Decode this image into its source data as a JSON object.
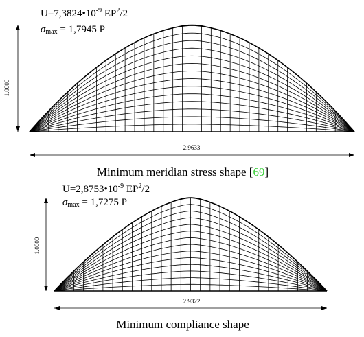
{
  "figure": {
    "panels": [
      {
        "id": "top",
        "energy": {
          "prefix": "U=7,3824•10",
          "exponent": "-9",
          "middle": " EP",
          "power": "2",
          "suffix": "/2"
        },
        "sigma": {
          "symbol": "σ",
          "subscript": "max",
          "value": " = 1,7945 P"
        },
        "height_label": "1.0000",
        "width_label": "2.9633",
        "caption": {
          "text": "Minimum meridian stress shape [",
          "ref": "69",
          "close": "]"
        }
      },
      {
        "id": "bottom",
        "energy": {
          "prefix": "U=2,8753•10",
          "exponent": "-9",
          "middle": " EP",
          "power": "2",
          "suffix": "/2"
        },
        "sigma": {
          "symbol": "σ",
          "subscript": "max",
          "value": " = 1,7275 P"
        },
        "height_label": "1.0000",
        "width_label": "2.9322",
        "caption": {
          "text": "Minimum compliance shape",
          "ref": "",
          "close": ""
        }
      }
    ],
    "colors": {
      "ink": "#000000",
      "reference": "#33cc33"
    }
  }
}
